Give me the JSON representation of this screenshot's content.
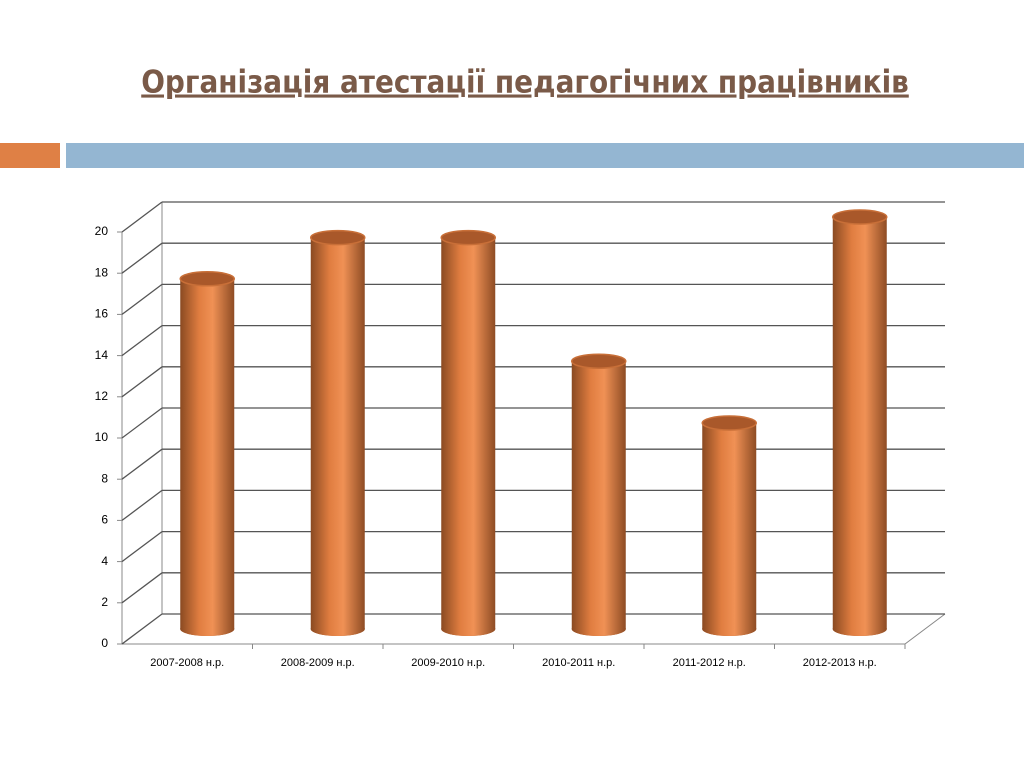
{
  "chart_data": {
    "type": "bar",
    "title": "Організація атестації педагогічних працівників",
    "categories": [
      "2007-2008 н.р.",
      "2008-2009 н.р.",
      "2009-2010 н.р.",
      "2010-2011 н.р.",
      "2011-2012 н.р.",
      "2012-2013 н.р."
    ],
    "values": [
      17,
      19,
      19,
      13,
      10,
      20
    ],
    "color": "#e8874a",
    "ylim": [
      0,
      20
    ],
    "yticks": [
      0,
      2,
      4,
      6,
      8,
      10,
      12,
      14,
      16,
      18,
      20
    ],
    "grid": true
  }
}
